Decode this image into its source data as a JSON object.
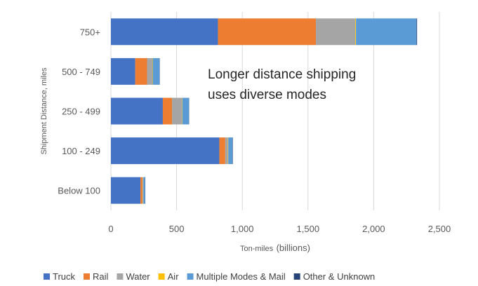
{
  "chart_data": {
    "type": "bar",
    "orientation": "horizontal",
    "stacked": true,
    "categories": [
      "750+",
      "500 - 749",
      "250 - 499",
      "100 - 249",
      "Below 100"
    ],
    "series": [
      {
        "name": "Truck",
        "color": "#4472C4",
        "values": [
          815,
          185,
          395,
          825,
          225
        ]
      },
      {
        "name": "Rail",
        "color": "#ED7D31",
        "values": [
          745,
          90,
          70,
          45,
          15
        ]
      },
      {
        "name": "Water",
        "color": "#A5A5A5",
        "values": [
          300,
          40,
          75,
          20,
          5
        ]
      },
      {
        "name": "Air",
        "color": "#FFC000",
        "values": [
          5,
          3,
          3,
          3,
          2
        ]
      },
      {
        "name": "Multiple Modes & Mail",
        "color": "#5B9BD5",
        "values": [
          460,
          52,
          50,
          32,
          13
        ]
      },
      {
        "name": "Other & Unknown",
        "color": "#264478",
        "values": [
          5,
          2,
          2,
          3,
          2
        ]
      }
    ],
    "xlim": [
      0,
      2500
    ],
    "xticks": [
      0,
      500,
      1000,
      1500,
      2000,
      2500
    ],
    "xtick_labels": [
      "0",
      "500",
      "1,000",
      "1,500",
      "2,000",
      "2,500"
    ],
    "xlabel_small": "Ton-miles",
    "xlabel_large": "(billions)",
    "ylabel": "Shipment Distance, miles",
    "annotation": [
      "Longer distance shipping",
      "uses diverse modes"
    ],
    "grid": "vertical",
    "legend_position": "bottom"
  }
}
